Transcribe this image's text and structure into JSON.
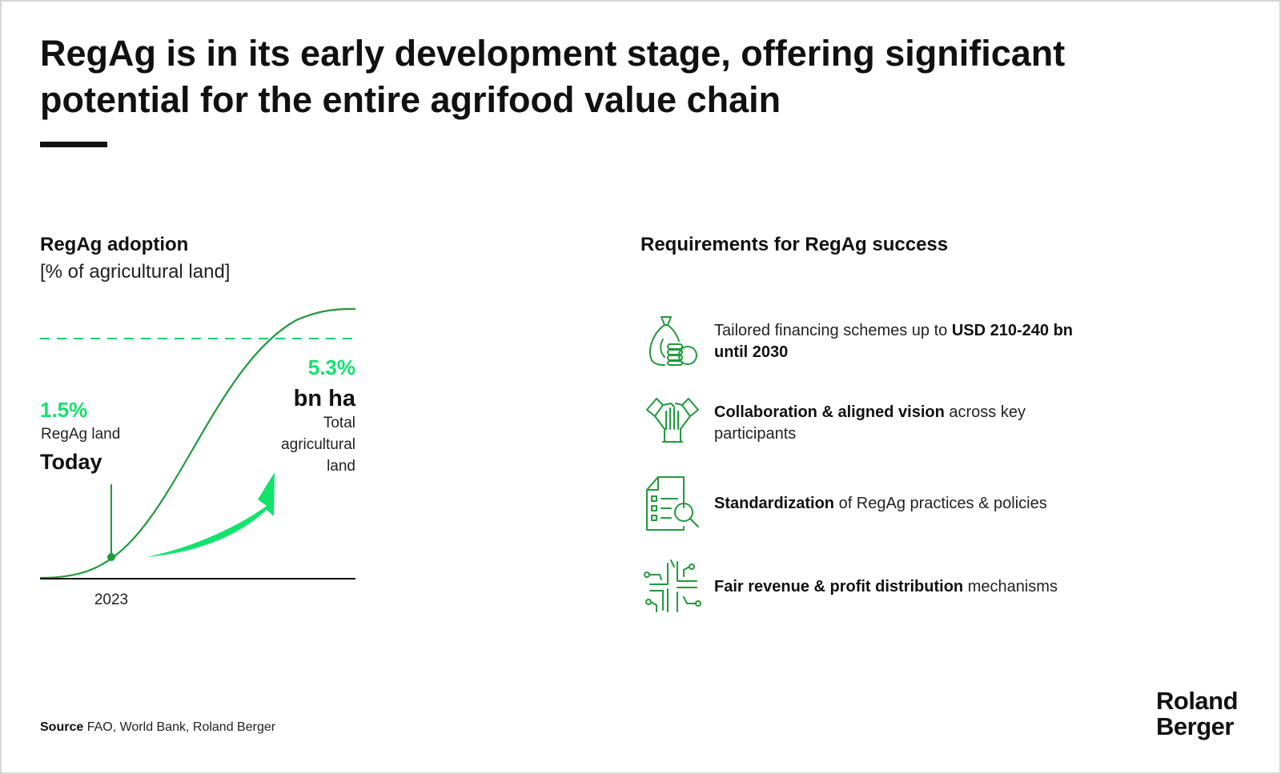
{
  "title": "RegAg is in its early development stage, offering significant potential for the entire agrifood value chain",
  "left": {
    "heading": "RegAg adoption",
    "subheading": "[% of agricultural land]"
  },
  "chart_data": {
    "type": "area",
    "title": "RegAg adoption",
    "ylabel": "[% of agricultural land]",
    "x_tick_labels": [
      "2023"
    ],
    "today_point": {
      "x": "2023",
      "value": "1.5%",
      "label": "RegAg land",
      "marker_label": "Today"
    },
    "target": {
      "value": "5.3%",
      "unit": "bn ha",
      "label_lines": [
        "Total",
        "agricultural",
        "land"
      ]
    },
    "ylim": [
      0,
      1
    ],
    "curve": "s-shaped adoption curve",
    "colors": {
      "curve": "#1f9a3c",
      "dashed": "#1fcf63",
      "accent": "#11e36c",
      "axis": "#111111"
    }
  },
  "right": {
    "heading": "Requirements for RegAg success",
    "items": [
      {
        "icon": "money-bag-coins-icon",
        "bold": "",
        "text": "Tailored financing schemes up to ",
        "bold_after": "USD 210-240 bn until 2030"
      },
      {
        "icon": "handshake-group-icon",
        "bold": "Collaboration & aligned vision",
        "text": " across key participants",
        "bold_after": ""
      },
      {
        "icon": "checklist-magnifier-icon",
        "bold": "Standardization",
        "text": " of RegAg practices & policies",
        "bold_after": ""
      },
      {
        "icon": "distribution-network-icon",
        "bold": "Fair revenue & profit distribution",
        "text": " mechanisms",
        "bold_after": ""
      }
    ]
  },
  "footer": {
    "source_label": "Source",
    "source_text": " FAO, World Bank, Roland Berger",
    "logo_line1": "Roland",
    "logo_line2": "Berger"
  },
  "colors": {
    "green": "#1f9a3c",
    "bright_green": "#11e36c",
    "text": "#111111"
  }
}
